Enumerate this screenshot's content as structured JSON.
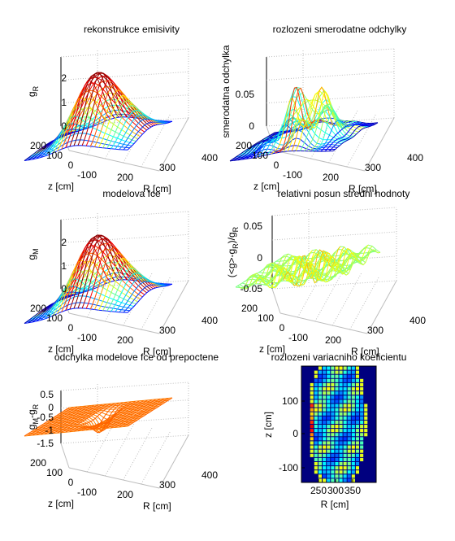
{
  "chart_data": [
    {
      "type": "surface",
      "title": "rekonstrukce emisivity",
      "xlabel": "R [cm]",
      "ylabel": "z [cm]",
      "zlabel": "g_R",
      "x_ticks": [
        "200",
        "300",
        "400"
      ],
      "y_ticks": [
        "200",
        "100",
        "0",
        "-100"
      ],
      "z_ticks": [
        "0",
        "1",
        "2"
      ],
      "zlim": [
        0,
        2.6
      ],
      "peak": 2.4
    },
    {
      "type": "surface",
      "title": "rozlozeni smerodatne odchylky",
      "xlabel": "R [cm]",
      "ylabel": "z [cm]",
      "zlabel": "smerodatna odchylka",
      "x_ticks": [
        "200",
        "300",
        "400"
      ],
      "y_ticks": [
        "200",
        "100",
        "0",
        "-100"
      ],
      "z_ticks": [
        "0",
        "0.05"
      ],
      "zlim": [
        0,
        0.1
      ],
      "peak": 0.08
    },
    {
      "type": "surface",
      "title": "modelova fce",
      "xlabel": "R [cm]",
      "ylabel": "z [cm]",
      "zlabel": "g_M",
      "x_ticks": [
        "200",
        "300",
        "400"
      ],
      "y_ticks": [
        "200",
        "100",
        "0",
        "-100"
      ],
      "z_ticks": [
        "0",
        "1",
        "2"
      ],
      "zlim": [
        0,
        2.6
      ],
      "peak": 2.4
    },
    {
      "type": "surface",
      "title": "relativni posun stredni hodnoty",
      "xlabel": "R [cm]",
      "ylabel": "z [cm]",
      "zlabel": "(<g>-g_R)/g_R",
      "x_ticks": [
        "200",
        "300",
        "400"
      ],
      "y_ticks": [
        "200",
        "100",
        "0",
        "-100"
      ],
      "z_ticks": [
        "-0.05",
        "0",
        "0.05"
      ],
      "zlim": [
        -0.06,
        0.06
      ]
    },
    {
      "type": "surface",
      "title": "odchylka modelove fce od prepoctene",
      "xlabel": "R [cm]",
      "ylabel": "z [cm]",
      "zlabel": "g_M-g_R",
      "x_ticks": [
        "200",
        "300",
        "400"
      ],
      "y_ticks": [
        "200",
        "100",
        "0",
        "-100"
      ],
      "z_ticks": [
        "-1.5",
        "-1",
        "-0.5",
        "0",
        "0.5"
      ],
      "zlim": [
        -1.6,
        0.6
      ]
    },
    {
      "type": "heatmap",
      "title": "rozlozeni variacniho koeficientu",
      "xlabel": "R [cm]",
      "ylabel": "z [cm]",
      "x_ticks": [
        "250",
        "300",
        "350"
      ],
      "y_ticks": [
        "100",
        "0",
        "-100"
      ],
      "colormap": "jet"
    }
  ]
}
